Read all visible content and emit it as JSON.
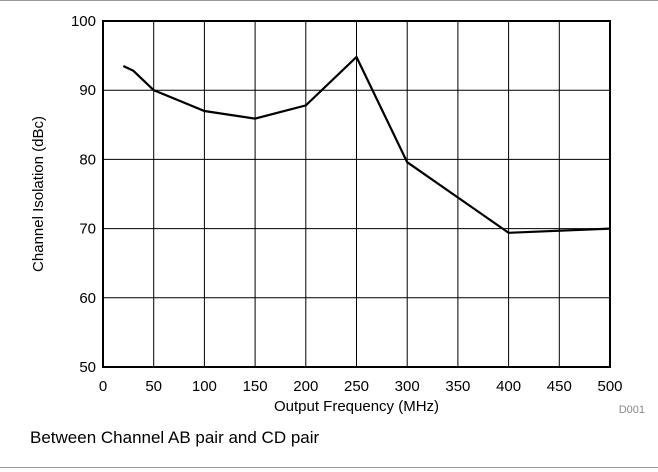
{
  "chart_data": {
    "type": "line",
    "title": "",
    "xlabel": "Output Frequency (MHz)",
    "ylabel": "Channel Isolation (dBc)",
    "xlim": [
      0,
      500
    ],
    "ylim": [
      50,
      100
    ],
    "xticks": [
      0,
      50,
      100,
      150,
      200,
      250,
      300,
      350,
      400,
      450,
      500
    ],
    "yticks": [
      50,
      60,
      70,
      80,
      90,
      100
    ],
    "grid": true,
    "legend": "none",
    "series": [
      {
        "x": [
          20,
          30,
          50,
          70,
          100,
          150,
          200,
          250,
          300,
          350,
          400,
          500
        ],
        "y": [
          93.5,
          92.8,
          90.0,
          88.8,
          87.0,
          85.9,
          87.8,
          94.8,
          79.6,
          74.5,
          69.4,
          70.0
        ]
      }
    ]
  },
  "figure_code": "D001",
  "caption": "Between Channel AB pair and CD pair",
  "colors": {
    "line": "#000000",
    "grid": "#000000",
    "background": "#ffffff"
  }
}
